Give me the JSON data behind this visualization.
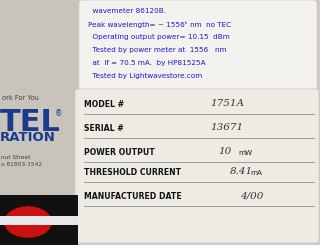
{
  "bg_color": "#d0cbc2",
  "label_bg": "#eeebe4",
  "top_label_bg": "#f4f2ee",
  "left_panel_bg": "#c8c3bb",
  "logo_blue": "#1a3a8c",
  "logo_red": "#cc1111",
  "sticker_lines": [
    "  wavemeter 86120B.",
    "Peak wavelength= ~ 1556ᵏ nm  no TEC",
    "  Operating output power= 10.15  dBm",
    "  Tested by power meter at  1556   nm",
    "  at  If = 70.5 mA.  by HP81525A",
    "  Tested by Lightwavestore.com"
  ],
  "fields": [
    {
      "label": "MODEL #",
      "value": "1751A",
      "unit": ""
    },
    {
      "label": "SERIAL #",
      "value": "13671",
      "unit": ""
    },
    {
      "label": "POWER OUTPUT",
      "value": "10",
      "unit": "mW"
    },
    {
      "label": "THRESHOLD CURRENT",
      "value": "8.41",
      "unit": "mA"
    },
    {
      "label": "MANUFACTURED DATE",
      "value": "4/00",
      "unit": ""
    }
  ],
  "figsize": [
    3.2,
    2.45
  ],
  "dpi": 100
}
